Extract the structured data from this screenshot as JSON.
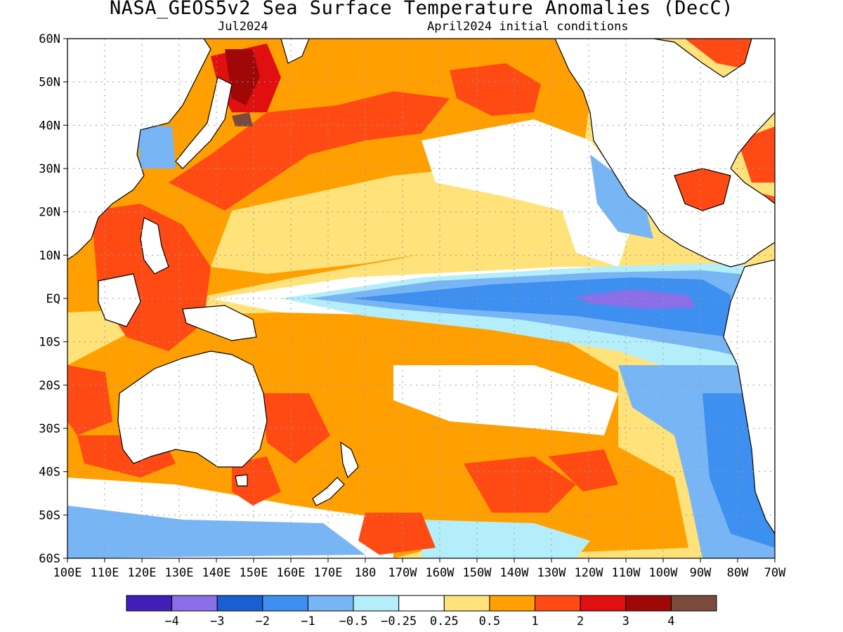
{
  "title": "NASA_GEOS5v2 Sea Surface Temperature Anomalies (DecC)",
  "subtitle_left": "Jul2024",
  "subtitle_right": "April2024 initial conditions",
  "y_ticks": [
    "60N",
    "50N",
    "40N",
    "30N",
    "20N",
    "10N",
    "EQ",
    "10S",
    "20S",
    "30S",
    "40S",
    "50S",
    "60S"
  ],
  "x_ticks": [
    "100E",
    "110E",
    "120E",
    "130E",
    "140E",
    "150E",
    "160E",
    "170E",
    "180",
    "170W",
    "160W",
    "150W",
    "140W",
    "130W",
    "120W",
    "110W",
    "100W",
    "90W",
    "80W",
    "70W"
  ],
  "colorbar": {
    "colors": [
      "#3f1fb8",
      "#8a6fe8",
      "#1a5fd0",
      "#3d8ff0",
      "#78b5f5",
      "#b4eefa",
      "#ffffff",
      "#ffe27a",
      "#ffa000",
      "#ff4a14",
      "#e01010",
      "#a00808",
      "#7a4a3c"
    ],
    "labels": [
      "-4",
      "-3",
      "-2",
      "-1",
      "-0.5",
      "-0.25",
      "0.25",
      "0.5",
      "1",
      "2",
      "3",
      "4"
    ]
  },
  "map": {
    "domain_lon": [
      100,
      290
    ],
    "domain_lat": [
      -60,
      60
    ],
    "land_color": "#ffffff",
    "ocean_background": "#ffe27a"
  }
}
